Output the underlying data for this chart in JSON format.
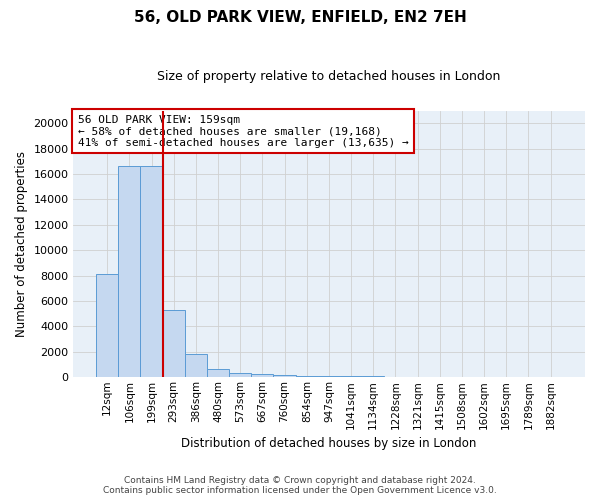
{
  "title": "56, OLD PARK VIEW, ENFIELD, EN2 7EH",
  "subtitle": "Size of property relative to detached houses in London",
  "xlabel": "Distribution of detached houses by size in London",
  "ylabel": "Number of detached properties",
  "footer_line1": "Contains HM Land Registry data © Crown copyright and database right 2024.",
  "footer_line2": "Contains public sector information licensed under the Open Government Licence v3.0.",
  "bar_labels": [
    "12sqm",
    "106sqm",
    "199sqm",
    "293sqm",
    "386sqm",
    "480sqm",
    "573sqm",
    "667sqm",
    "760sqm",
    "854sqm",
    "947sqm",
    "1041sqm",
    "1134sqm",
    "1228sqm",
    "1321sqm",
    "1415sqm",
    "1508sqm",
    "1602sqm",
    "1695sqm",
    "1789sqm",
    "1882sqm"
  ],
  "bar_values": [
    8100,
    16600,
    16600,
    5300,
    1800,
    650,
    360,
    260,
    170,
    120,
    90,
    70,
    55,
    45,
    35,
    28,
    22,
    18,
    14,
    11,
    8
  ],
  "bar_color": "#c5d8f0",
  "bar_edge_color": "#5b9bd5",
  "grid_color": "#d0d0d0",
  "background_color": "#e8f0f8",
  "annotation_text": "56 OLD PARK VIEW: 159sqm\n← 58% of detached houses are smaller (19,168)\n41% of semi-detached houses are larger (13,635) →",
  "annotation_box_color": "#ffffff",
  "annotation_box_edge": "#cc0000",
  "vline_color": "#cc0000",
  "ylim": [
    0,
    21000
  ],
  "yticks": [
    0,
    2000,
    4000,
    6000,
    8000,
    10000,
    12000,
    14000,
    16000,
    18000,
    20000
  ]
}
